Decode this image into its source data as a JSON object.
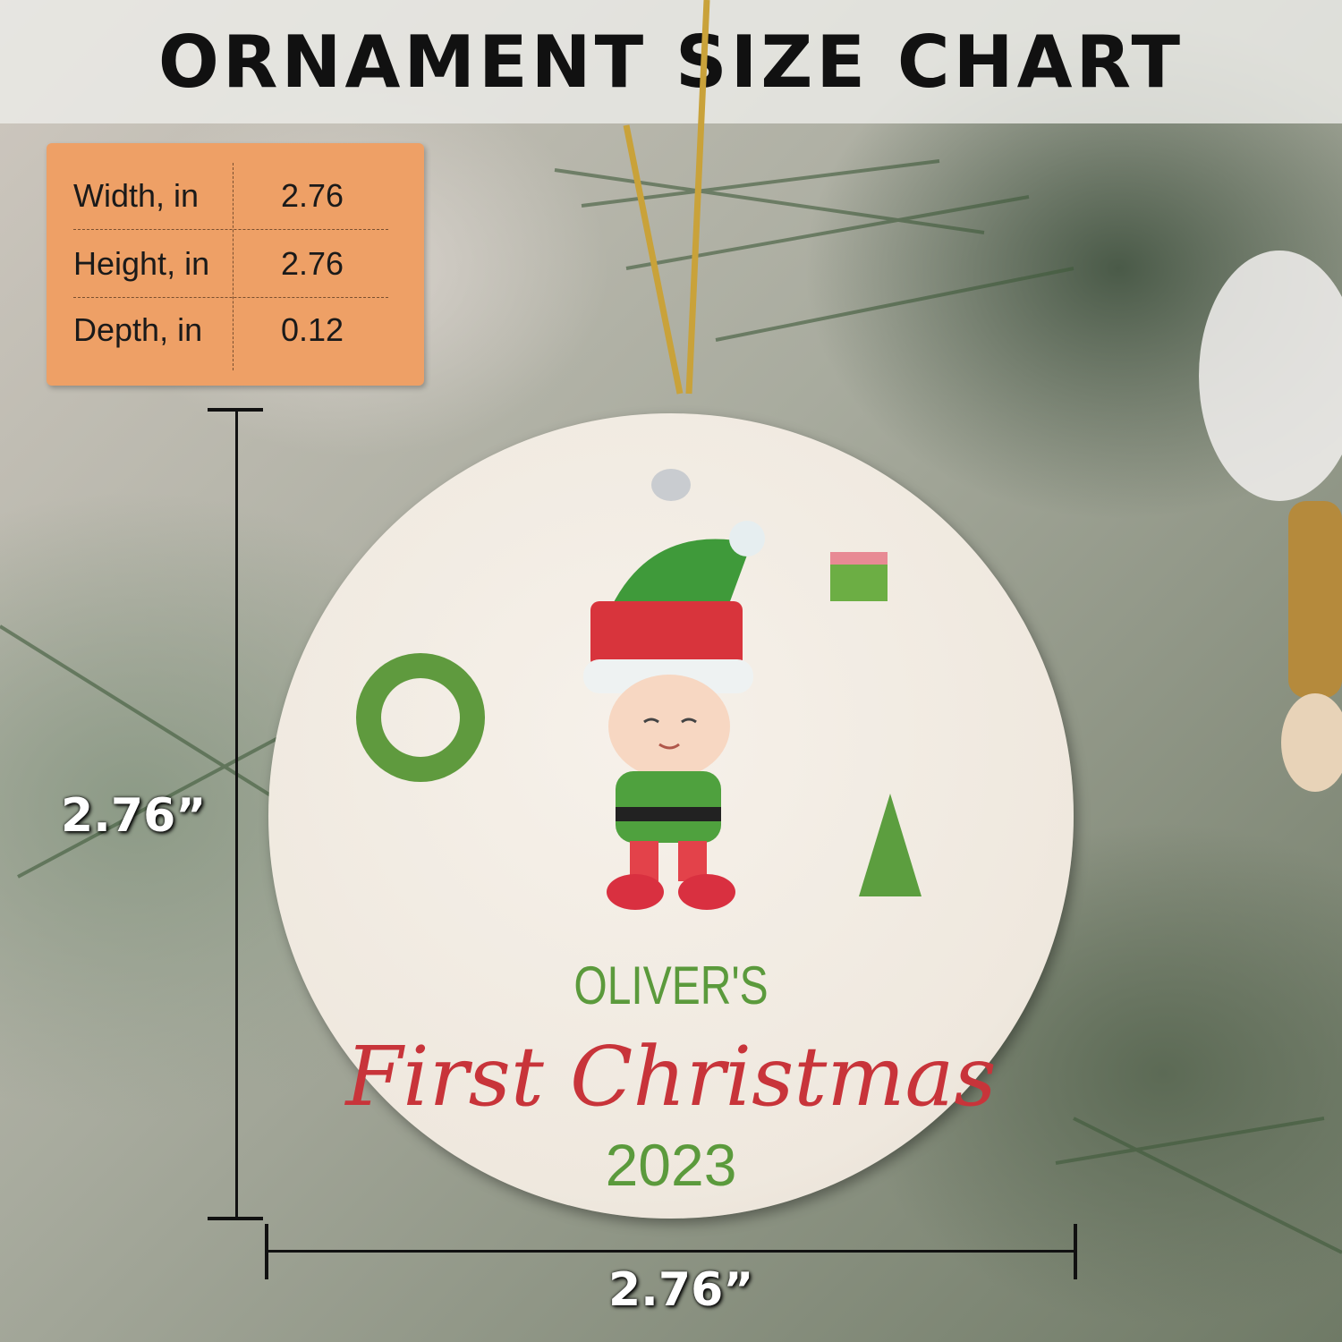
{
  "header": {
    "title": "ORNAMENT SIZE CHART"
  },
  "size_table": {
    "rows": [
      {
        "label": "Width, in",
        "value": "2.76"
      },
      {
        "label": "Height, in",
        "value": "2.76"
      },
      {
        "label": "Depth, in",
        "value": "0.12"
      }
    ]
  },
  "dimensions": {
    "height_label": "2.76”",
    "width_label": "2.76”"
  },
  "ornament": {
    "name": "OLIVER'S",
    "phrase": "First Christmas",
    "year": "2023"
  },
  "colors": {
    "table_bg": "#eea066",
    "name_green": "#5b9a3c",
    "script_red": "#c8343a"
  }
}
